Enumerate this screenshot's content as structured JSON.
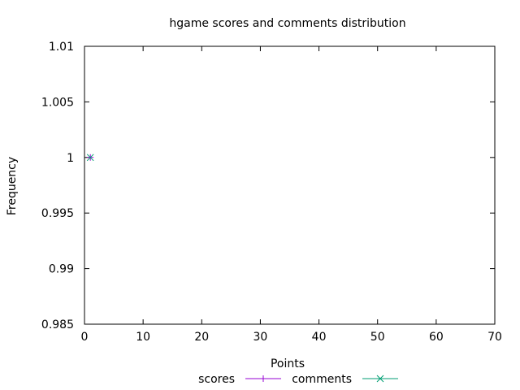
{
  "chart_data": {
    "type": "scatter",
    "title": "hgame scores and comments distribution",
    "xlabel": "Points",
    "ylabel": "Frequency",
    "xlim": [
      0,
      70
    ],
    "ylim": [
      0.985,
      1.01
    ],
    "x_ticks": [
      0,
      10,
      20,
      30,
      40,
      50,
      60,
      70
    ],
    "y_ticks": [
      0.985,
      0.99,
      0.995,
      1,
      1.005,
      1.01
    ],
    "x_tick_labels": [
      "0",
      "10",
      "20",
      "30",
      "40",
      "50",
      "60",
      "70"
    ],
    "y_tick_labels": [
      "0.985",
      "0.99",
      "0.995",
      "1",
      "1.005",
      "1.01"
    ],
    "grid": false,
    "legend_position": "bottom-center",
    "series": [
      {
        "name": "scores",
        "color": "#9400d3",
        "marker": "plus",
        "points": [
          {
            "x": 1,
            "y": 1
          }
        ]
      },
      {
        "name": "comments",
        "color": "#009e73",
        "marker": "cross",
        "points": [
          {
            "x": 1,
            "y": 1
          }
        ]
      }
    ]
  }
}
